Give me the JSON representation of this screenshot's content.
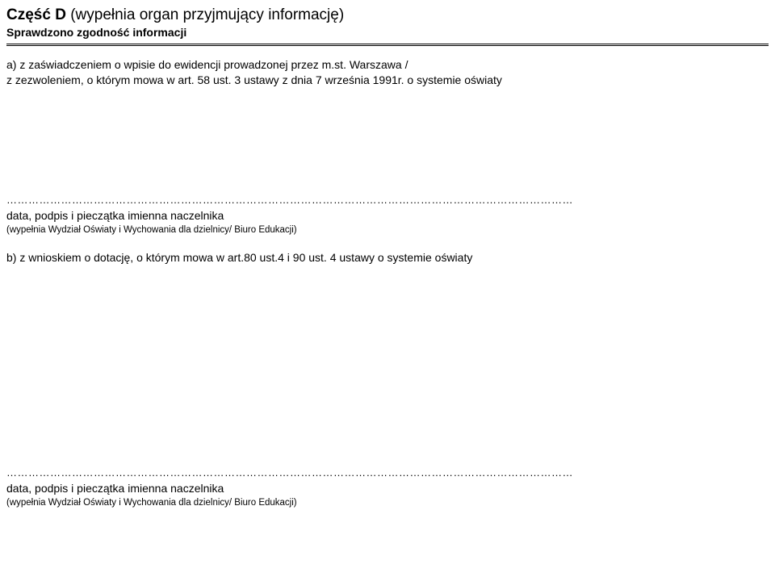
{
  "colors": {
    "text": "#000000",
    "background": "#ffffff",
    "rule": "#000000"
  },
  "header": {
    "title_bold": "Część D",
    "title_rest": " (wypełnia organ przyjmujący informację)",
    "subtitle": "Sprawdzono zgodność informacji"
  },
  "paraA": {
    "line1": "a) z zaświadczeniem o wpisie do ewidencji prowadzonej przez m.st. Warszawa /",
    "line2": "z zezwoleniem, o którym mowa w art. 58 ust. 3 ustawy z dnia 7 września 1991r. o systemie oświaty"
  },
  "dotsA": "…………………………………………………………………………………………………………………………………………",
  "sigA": {
    "line": "data, podpis i pieczątka imienna naczelnika",
    "small": "(wypełnia Wydział Oświaty i Wychowania dla dzielnicy/ Biuro Edukacji)"
  },
  "paraB": {
    "line": "b) z wnioskiem o dotację, o którym mowa w art.80 ust.4 i 90 ust. 4 ustawy o systemie oświaty"
  },
  "dotsB": "…………………………………………………………………………………………………………………………………………",
  "sigB": {
    "line": "data, podpis i pieczątka imienna naczelnika",
    "small": "(wypełnia Wydział Oświaty i Wychowania dla dzielnicy/ Biuro Edukacji)"
  }
}
